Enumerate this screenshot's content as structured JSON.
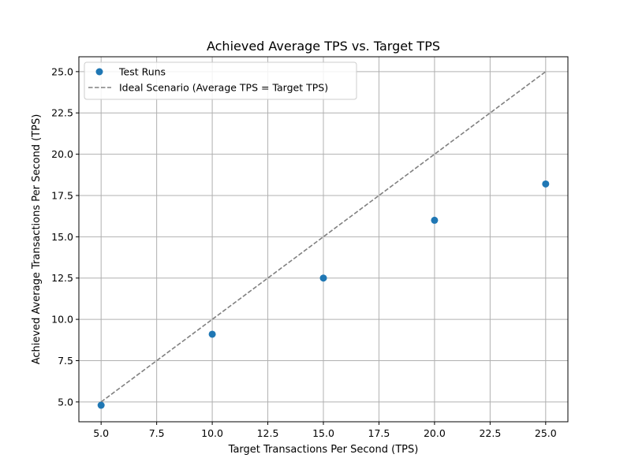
{
  "chart_data": {
    "type": "scatter",
    "title": "Achieved Average TPS vs. Target TPS",
    "xlabel": "Target Transactions Per Second (TPS)",
    "ylabel": "Achieved Average Transactions Per Second (TPS)",
    "xlim": [
      4.0,
      26.0
    ],
    "ylim": [
      3.8,
      25.9
    ],
    "xticks": [
      "5.0",
      "7.5",
      "10.0",
      "12.5",
      "15.0",
      "17.5",
      "20.0",
      "22.5",
      "25.0"
    ],
    "yticks": [
      "5.0",
      "7.5",
      "10.0",
      "12.5",
      "15.0",
      "17.5",
      "20.0",
      "22.5",
      "25.0"
    ],
    "grid": true,
    "legend_position": "top-left",
    "series": [
      {
        "name": "Test Runs",
        "kind": "scatter",
        "color": "#1f77b4",
        "x": [
          5,
          10,
          15,
          20,
          25
        ],
        "y": [
          4.8,
          9.1,
          12.5,
          16.0,
          18.2
        ]
      },
      {
        "name": "Ideal Scenario (Average TPS = Target TPS)",
        "kind": "line",
        "style": "dashed",
        "color": "#808080",
        "x": [
          5,
          25
        ],
        "y": [
          5,
          25
        ]
      }
    ]
  }
}
